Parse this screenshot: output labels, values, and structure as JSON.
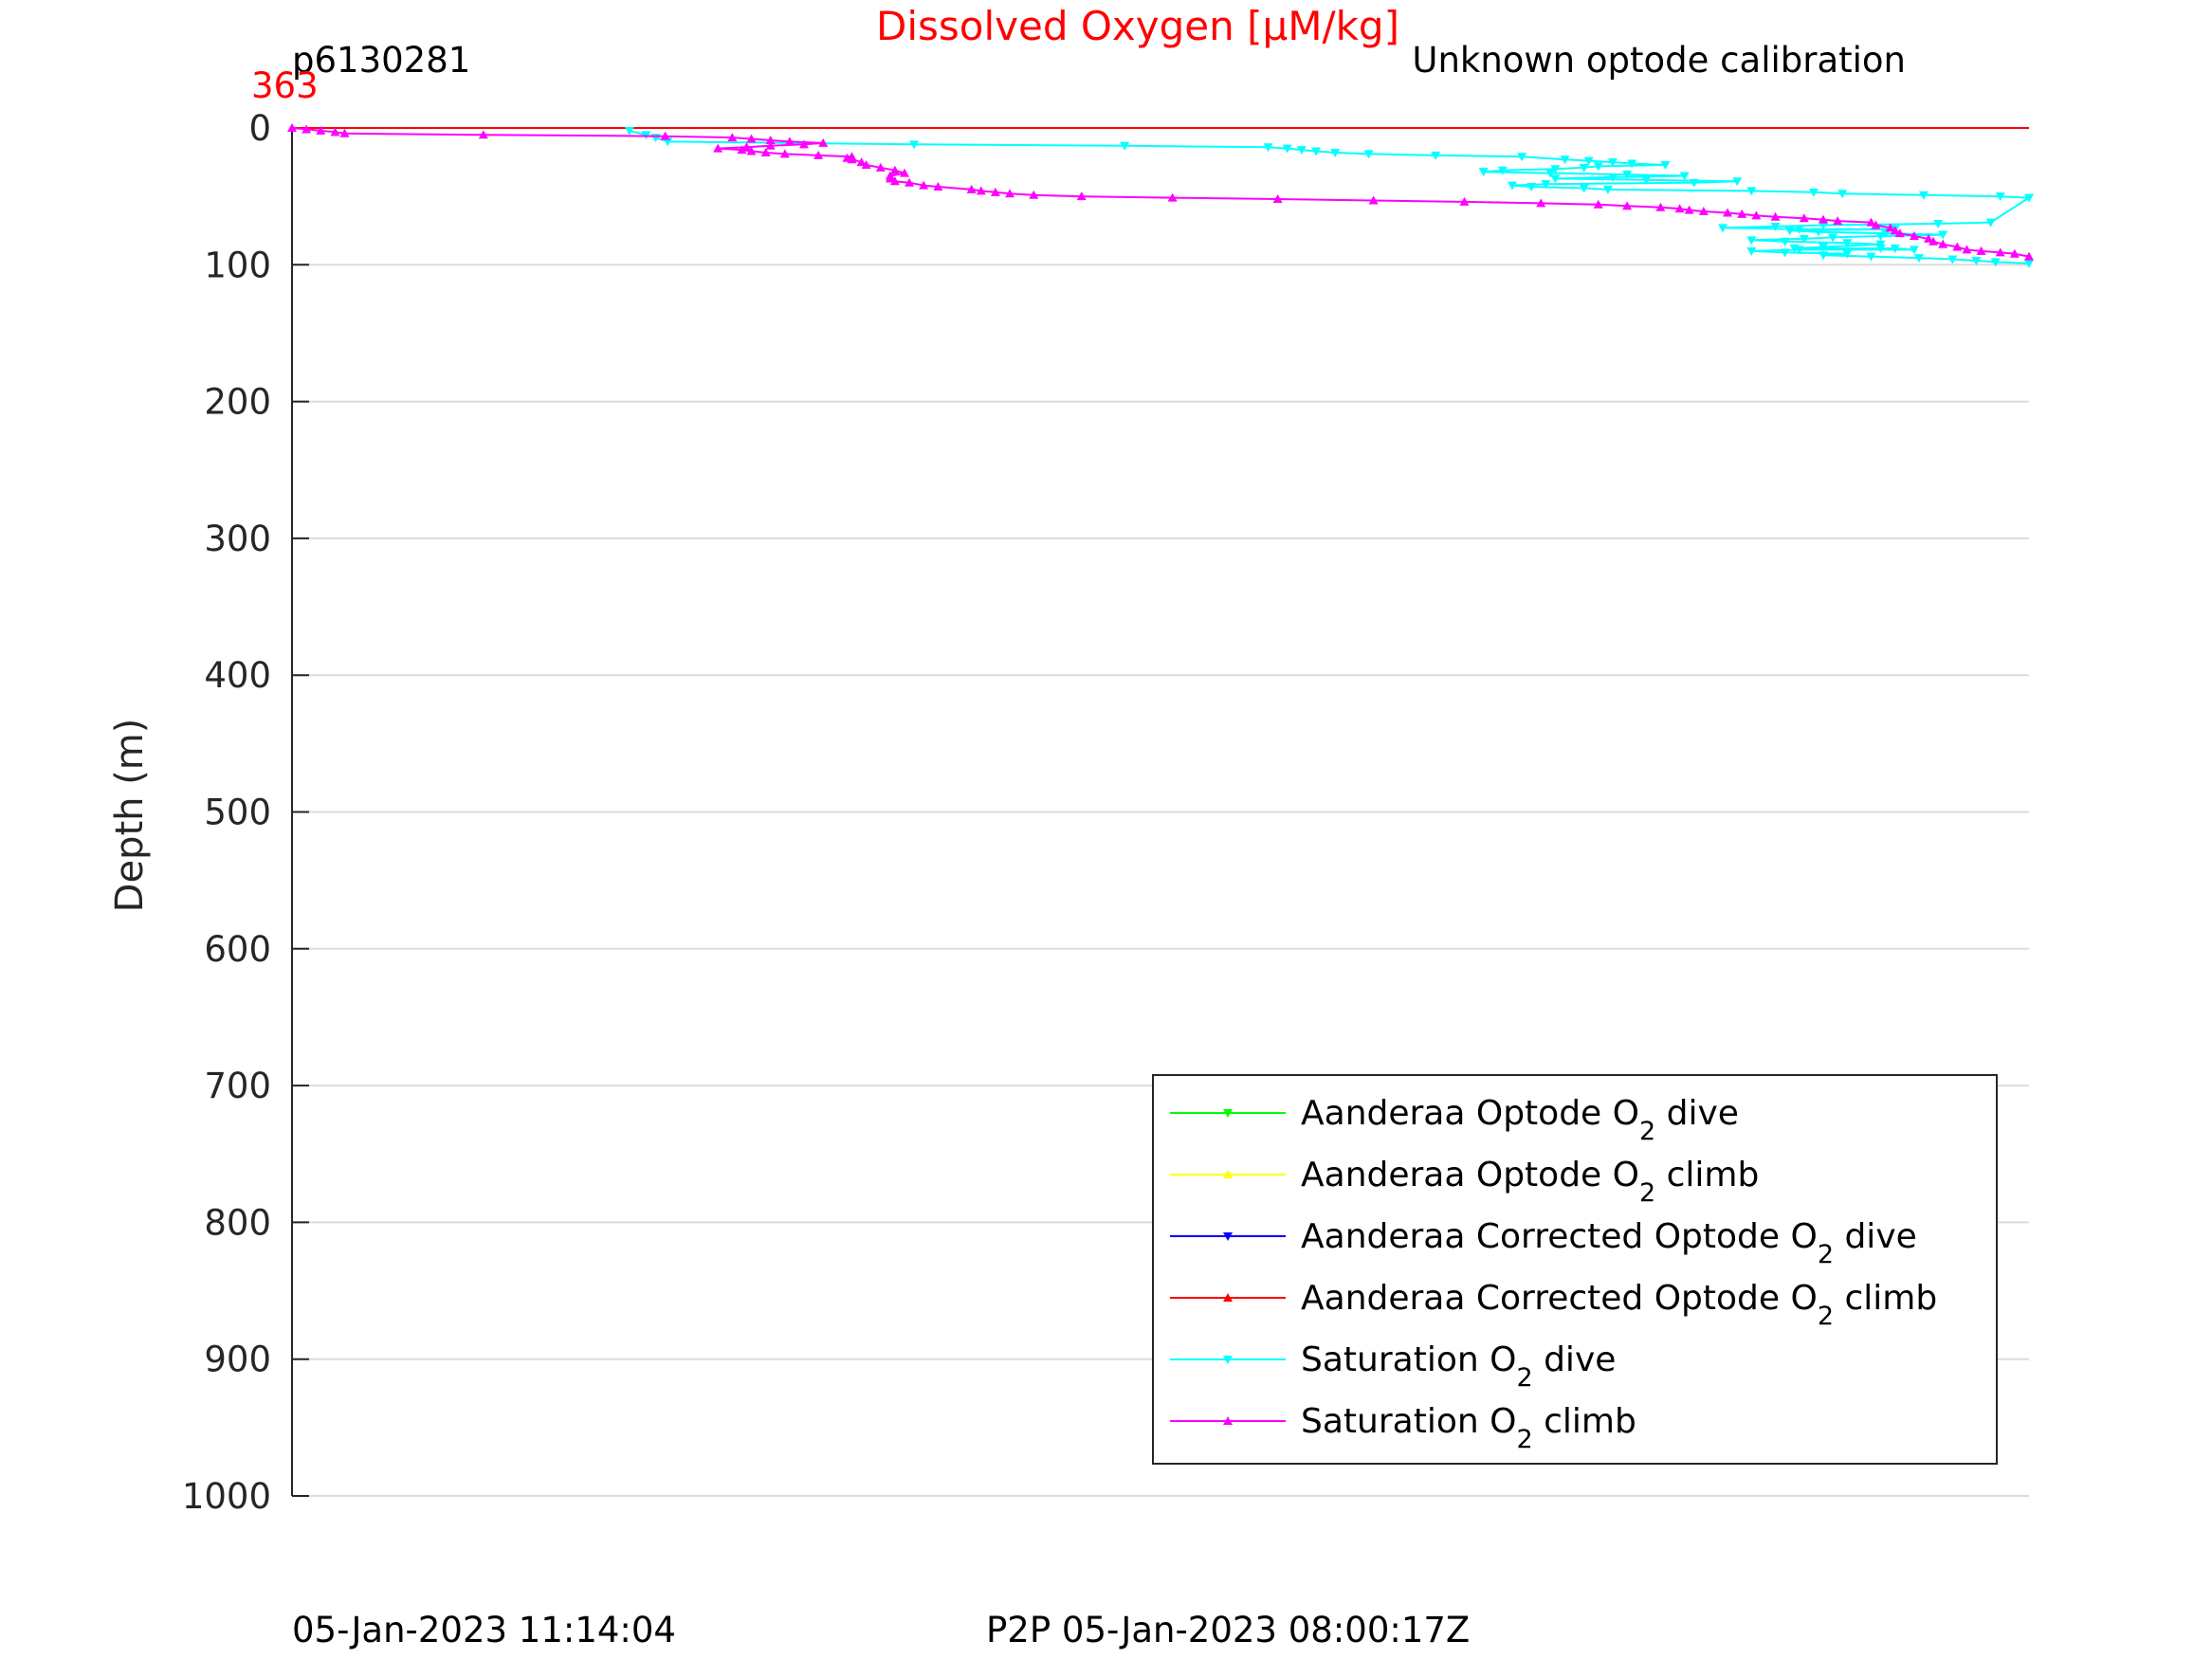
{
  "header": {
    "title": "Dissolved Oxygen [μM/kg]",
    "glider_id": "p6130281",
    "calibration_note": "Unknown optode calibration",
    "top_value": "363",
    "title_color": "#ff0000"
  },
  "footer": {
    "left_timestamp": "05-Jan-2023 11:14:04",
    "center_timestamp": "P2P 05-Jan-2023 08:00:17Z"
  },
  "chart_data": {
    "type": "line",
    "ylabel": "Depth (m)",
    "ylim": [
      0,
      1000
    ],
    "y_reversed": true,
    "yticks": [
      0,
      100,
      200,
      300,
      400,
      500,
      600,
      700,
      800,
      900,
      1000
    ],
    "ytick_labels": [
      "0",
      "100",
      "200",
      "300",
      "400",
      "500",
      "600",
      "700",
      "800",
      "900",
      "1000"
    ],
    "xlim": [
      0,
      363
    ],
    "x_axis_labels_shown": false,
    "grid": true,
    "legend_position": "lower-right",
    "series": [
      {
        "name": "Aanderaa Optode O",
        "subscript": "2",
        "suffix": " dive",
        "color": "#00ff00",
        "marker": "triangle-down",
        "points": []
      },
      {
        "name": "Aanderaa Optode O",
        "subscript": "2",
        "suffix": " climb",
        "color": "#ffff00",
        "marker": "triangle-up",
        "points": []
      },
      {
        "name": "Aanderaa Corrected Optode O",
        "subscript": "2",
        "suffix": " dive",
        "color": "#0000ff",
        "marker": "triangle-down",
        "points": []
      },
      {
        "name": "Aanderaa Corrected Optode O",
        "subscript": "2",
        "suffix": " climb",
        "color": "#ff0000",
        "marker": "triangle-up",
        "marker_every": 0,
        "points": [
          [
            0,
            0
          ],
          [
            363,
            0
          ]
        ]
      },
      {
        "name": "Saturation O",
        "subscript": "2",
        "suffix": " dive",
        "color": "#00ffff",
        "marker": "triangle-down",
        "marker_every": 1,
        "points": [
          [
            70.5,
            2
          ],
          [
            74,
            5
          ],
          [
            76,
            7
          ],
          [
            78.5,
            10
          ],
          [
            130,
            12
          ],
          [
            174,
            13
          ],
          [
            204,
            14
          ],
          [
            208,
            15
          ],
          [
            211,
            16
          ],
          [
            214,
            17
          ],
          [
            218,
            18
          ],
          [
            225,
            19
          ],
          [
            239,
            20
          ],
          [
            257,
            21
          ],
          [
            266,
            23
          ],
          [
            271,
            24
          ],
          [
            276,
            25
          ],
          [
            280,
            26
          ],
          [
            287,
            27
          ],
          [
            273,
            28
          ],
          [
            270,
            29
          ],
          [
            264,
            30
          ],
          [
            253,
            31
          ],
          [
            249,
            32
          ],
          [
            263,
            33
          ],
          [
            279,
            34
          ],
          [
            291,
            35
          ],
          [
            276,
            36
          ],
          [
            264,
            37
          ],
          [
            283,
            38
          ],
          [
            302,
            39
          ],
          [
            293,
            40
          ],
          [
            262,
            41
          ],
          [
            255,
            42
          ],
          [
            259,
            43
          ],
          [
            270,
            44
          ],
          [
            275,
            45
          ],
          [
            305,
            46
          ],
          [
            318,
            47
          ],
          [
            324,
            48
          ],
          [
            341,
            49
          ],
          [
            357,
            50
          ],
          [
            363,
            51
          ],
          [
            355,
            69
          ],
          [
            344,
            70
          ],
          [
            320,
            71
          ],
          [
            310,
            72
          ],
          [
            299,
            73
          ],
          [
            315,
            74
          ],
          [
            335,
            74
          ],
          [
            313,
            75
          ],
          [
            319,
            76
          ],
          [
            333,
            77
          ],
          [
            345,
            78
          ],
          [
            332,
            79
          ],
          [
            322,
            80
          ],
          [
            316,
            81
          ],
          [
            305,
            82
          ],
          [
            312,
            83
          ],
          [
            325,
            84
          ],
          [
            332,
            85
          ],
          [
            320,
            87
          ],
          [
            314,
            88
          ],
          [
            332,
            88
          ],
          [
            335,
            88
          ],
          [
            339,
            89
          ],
          [
            315,
            89
          ],
          [
            305,
            90
          ],
          [
            312,
            91
          ],
          [
            325,
            92
          ],
          [
            320,
            93
          ],
          [
            330,
            94
          ],
          [
            340,
            95
          ],
          [
            347,
            96
          ],
          [
            352,
            97
          ],
          [
            356,
            98
          ],
          [
            363,
            99
          ]
        ]
      },
      {
        "name": "Saturation O",
        "subscript": "2",
        "suffix": " climb",
        "color": "#ff00ff",
        "marker": "triangle-up",
        "marker_every": 1,
        "points": [
          [
            0,
            0
          ],
          [
            3,
            1
          ],
          [
            6,
            2
          ],
          [
            9,
            3
          ],
          [
            11,
            4
          ],
          [
            40,
            5
          ],
          [
            78,
            6
          ],
          [
            92,
            7
          ],
          [
            96,
            8
          ],
          [
            100,
            9
          ],
          [
            104,
            10
          ],
          [
            111,
            11
          ],
          [
            107,
            12
          ],
          [
            100,
            13
          ],
          [
            95,
            14
          ],
          [
            89,
            15
          ],
          [
            94,
            16
          ],
          [
            96,
            17
          ],
          [
            99,
            18
          ],
          [
            103,
            19
          ],
          [
            110,
            20
          ],
          [
            117,
            21
          ],
          [
            116,
            22
          ],
          [
            117,
            23
          ],
          [
            119,
            25
          ],
          [
            120,
            27
          ],
          [
            123,
            29
          ],
          [
            126,
            31
          ],
          [
            128,
            33
          ],
          [
            125,
            35
          ],
          [
            125,
            37
          ],
          [
            126,
            39
          ],
          [
            129,
            40
          ],
          [
            132,
            42
          ],
          [
            135,
            43
          ],
          [
            142,
            45
          ],
          [
            144,
            46
          ],
          [
            147,
            47
          ],
          [
            150,
            48
          ],
          [
            155,
            49
          ],
          [
            165,
            50
          ],
          [
            184,
            51
          ],
          [
            206,
            52
          ],
          [
            226,
            53
          ],
          [
            245,
            54
          ],
          [
            261,
            55
          ],
          [
            273,
            56
          ],
          [
            279,
            57
          ],
          [
            286,
            58
          ],
          [
            290,
            59
          ],
          [
            292,
            60
          ],
          [
            295,
            61
          ],
          [
            300,
            62
          ],
          [
            303,
            63
          ],
          [
            306,
            64
          ],
          [
            310,
            65
          ],
          [
            316,
            66
          ],
          [
            320,
            67
          ],
          [
            323,
            68
          ],
          [
            330,
            69
          ],
          [
            331,
            71
          ],
          [
            334,
            73
          ],
          [
            335,
            75
          ],
          [
            336,
            77
          ],
          [
            339,
            79
          ],
          [
            342,
            81
          ],
          [
            343,
            83
          ],
          [
            345,
            85
          ],
          [
            348,
            87
          ],
          [
            350,
            89
          ],
          [
            353,
            90
          ],
          [
            357,
            91
          ],
          [
            360,
            92
          ],
          [
            363,
            94
          ]
        ]
      }
    ]
  }
}
